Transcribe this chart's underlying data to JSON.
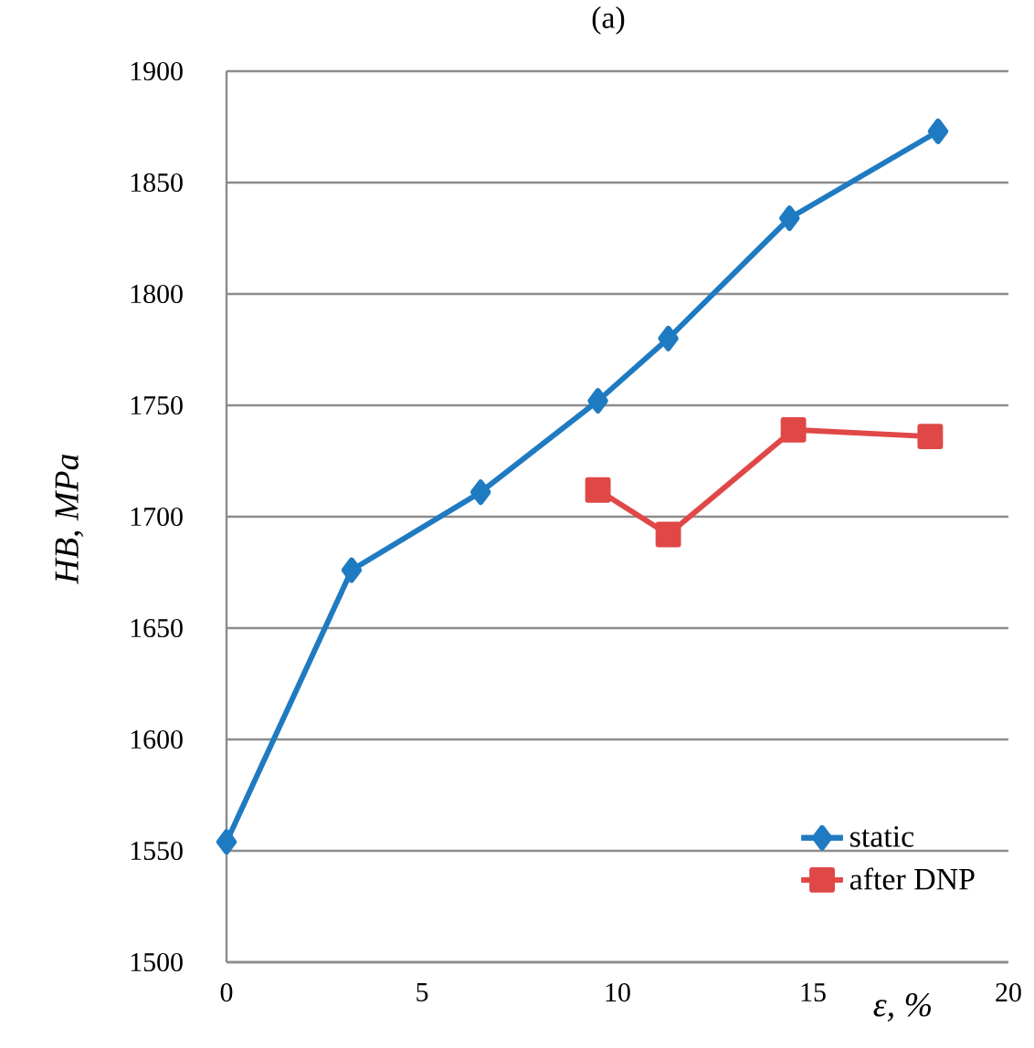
{
  "chart_data": {
    "type": "line",
    "title": "(a)",
    "xlabel": "ε, %",
    "ylabel": "*HB, MPa*",
    "xlim": [
      0,
      20
    ],
    "xticks": [
      0,
      5,
      10,
      15,
      20
    ],
    "ylim": [
      1500,
      1900
    ],
    "yticks": [
      1500,
      1550,
      1600,
      1650,
      1700,
      1750,
      1800,
      1850,
      1900
    ],
    "grid": "y",
    "legend": "bottom right",
    "line_style": "solid",
    "series": [
      {
        "name": "static",
        "color": "#1f7bc1",
        "marker": "diamond",
        "x": [
          0,
          3.2,
          6.5,
          9.5,
          11.3,
          14.4,
          18.2
        ],
        "values": [
          1554,
          1676,
          1711,
          1752,
          1780,
          1834,
          1873
        ]
      },
      {
        "name": "after DNP",
        "color": "#e04848",
        "marker": "square",
        "x": [
          9.5,
          11.3,
          14.5,
          18.0
        ],
        "values": [
          1712,
          1692,
          1739,
          1736
        ]
      }
    ]
  }
}
